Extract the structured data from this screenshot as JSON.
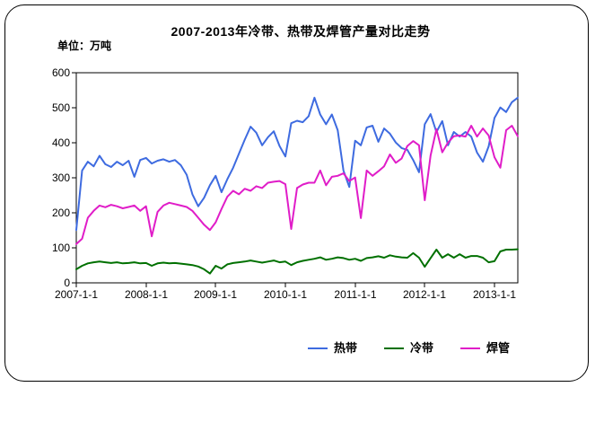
{
  "frame": {
    "border_color": "#000000",
    "background": "#ffffff"
  },
  "title": "2007-2013年冷带、热带及焊管产量对比走势",
  "unit_label": "单位：万吨",
  "chart_data": {
    "type": "line",
    "title": "2007-2013年冷带、热带及焊管产量对比走势",
    "ylabel": "单位：万吨",
    "xlabel": "",
    "ylim": [
      0,
      600
    ],
    "grid": false,
    "legend_position": "bottom",
    "yticks": [
      "600",
      "500",
      "400",
      "300",
      "200",
      "100",
      "0"
    ],
    "x_labels": [
      "2007-1-1",
      "2008-1-1",
      "2009-1-1",
      "2010-1-1",
      "2011-1-1",
      "2012-1-1",
      "2013-1-1"
    ],
    "x_months": [
      "2007-01",
      "2007-02",
      "2007-03",
      "2007-04",
      "2007-05",
      "2007-06",
      "2007-07",
      "2007-08",
      "2007-09",
      "2007-10",
      "2007-11",
      "2007-12",
      "2008-01",
      "2008-02",
      "2008-03",
      "2008-04",
      "2008-05",
      "2008-06",
      "2008-07",
      "2008-08",
      "2008-09",
      "2008-10",
      "2008-11",
      "2008-12",
      "2009-01",
      "2009-02",
      "2009-03",
      "2009-04",
      "2009-05",
      "2009-06",
      "2009-07",
      "2009-08",
      "2009-09",
      "2009-10",
      "2009-11",
      "2009-12",
      "2010-01",
      "2010-02",
      "2010-03",
      "2010-04",
      "2010-05",
      "2010-06",
      "2010-07",
      "2010-08",
      "2010-09",
      "2010-10",
      "2010-11",
      "2010-12",
      "2011-01",
      "2011-02",
      "2011-03",
      "2011-04",
      "2011-05",
      "2011-06",
      "2011-07",
      "2011-08",
      "2011-09",
      "2011-10",
      "2011-11",
      "2011-12",
      "2012-01",
      "2012-02",
      "2012-03",
      "2012-04",
      "2012-05",
      "2012-06",
      "2012-07",
      "2012-08",
      "2012-09",
      "2012-10",
      "2012-11",
      "2012-12",
      "2013-01",
      "2013-02",
      "2013-03",
      "2013-04",
      "2013-05"
    ],
    "series": [
      {
        "name": "热带",
        "color": "#3E6BE0",
        "values": [
          150,
          320,
          345,
          332,
          362,
          338,
          330,
          345,
          335,
          348,
          302,
          350,
          356,
          340,
          348,
          352,
          345,
          350,
          335,
          308,
          252,
          218,
          242,
          278,
          305,
          258,
          295,
          328,
          368,
          408,
          445,
          428,
          392,
          415,
          432,
          390,
          360,
          455,
          462,
          458,
          475,
          528,
          480,
          452,
          480,
          435,
          320,
          273,
          405,
          392,
          443,
          448,
          402,
          440,
          425,
          400,
          384,
          379,
          350,
          315,
          452,
          481,
          430,
          461,
          392,
          430,
          417,
          430,
          417,
          371,
          345,
          389,
          470,
          500,
          487,
          515,
          528
        ]
      },
      {
        "name": "冷带",
        "color": "#007000",
        "values": [
          38,
          48,
          55,
          58,
          60,
          58,
          56,
          58,
          55,
          56,
          58,
          55,
          56,
          48,
          55,
          57,
          55,
          56,
          54,
          52,
          50,
          46,
          38,
          26,
          48,
          40,
          52,
          56,
          58,
          60,
          63,
          60,
          57,
          60,
          63,
          58,
          60,
          50,
          58,
          62,
          65,
          68,
          72,
          65,
          68,
          72,
          70,
          65,
          68,
          62,
          70,
          72,
          75,
          71,
          78,
          74,
          72,
          71,
          84,
          71,
          45,
          70,
          94,
          71,
          81,
          71,
          81,
          71,
          76,
          76,
          71,
          58,
          61,
          89,
          94,
          94,
          95
        ]
      },
      {
        "name": "焊管",
        "color": "#E01DC8",
        "values": [
          110,
          125,
          185,
          205,
          220,
          215,
          222,
          218,
          212,
          216,
          220,
          205,
          218,
          132,
          202,
          220,
          228,
          224,
          220,
          216,
          205,
          185,
          165,
          150,
          172,
          210,
          245,
          262,
          252,
          268,
          262,
          275,
          270,
          285,
          288,
          290,
          281,
          153,
          270,
          280,
          285,
          285,
          320,
          278,
          302,
          305,
          312,
          290,
          300,
          184,
          320,
          305,
          318,
          332,
          366,
          342,
          354,
          390,
          404,
          392,
          235,
          363,
          438,
          372,
          400,
          418,
          420,
          417,
          448,
          417,
          440,
          420,
          358,
          328,
          435,
          448,
          418
        ]
      }
    ]
  },
  "legend": {
    "items": [
      {
        "label": "热带",
        "color": "#3E6BE0"
      },
      {
        "label": "冷带",
        "color": "#007000"
      },
      {
        "label": "焊管",
        "color": "#E01DC8"
      }
    ]
  }
}
